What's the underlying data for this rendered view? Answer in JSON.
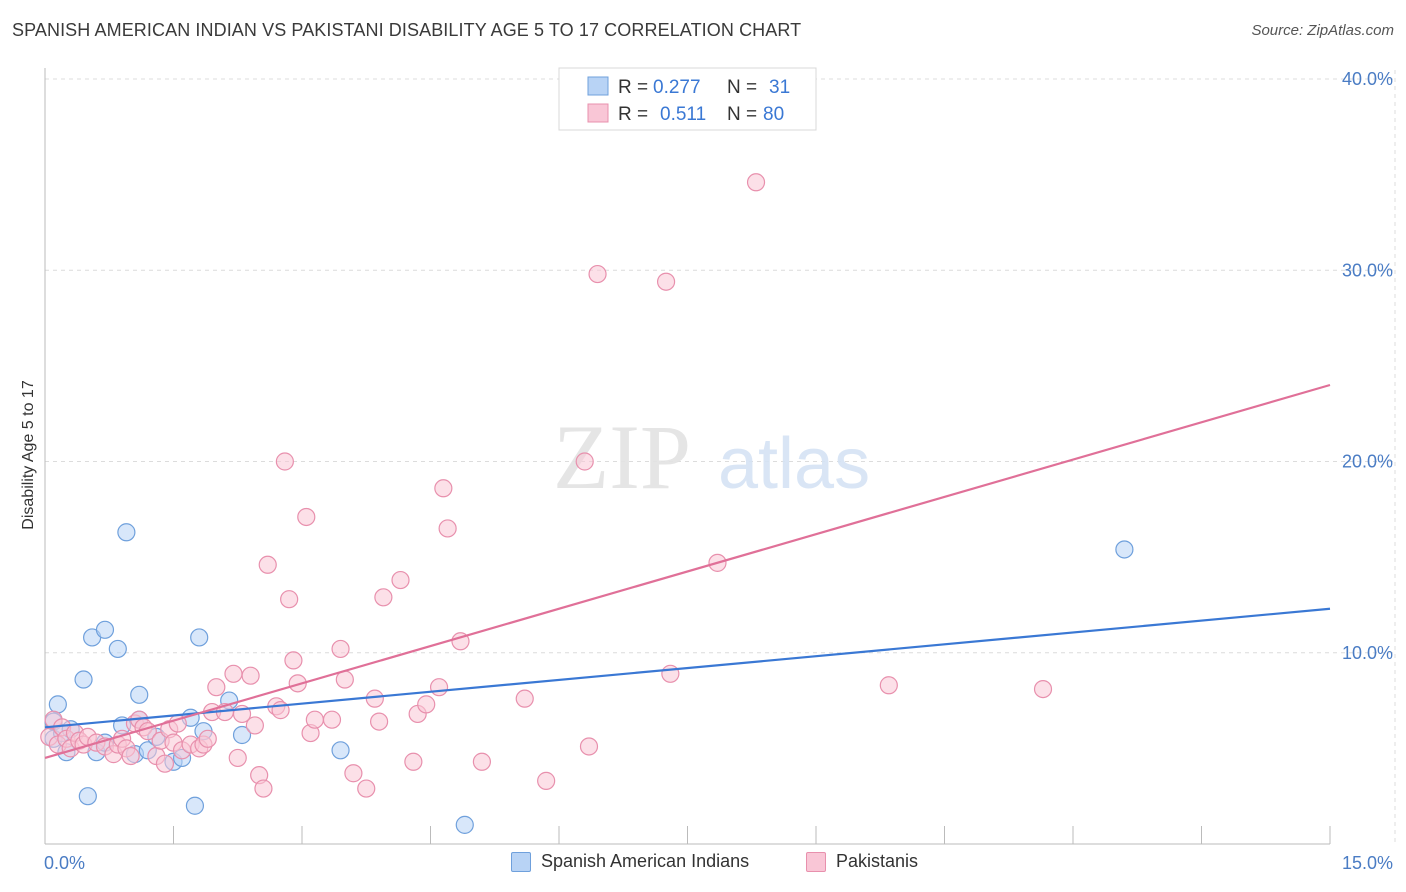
{
  "header": {
    "title": "SPANISH AMERICAN INDIAN VS PAKISTANI DISABILITY AGE 5 TO 17 CORRELATION CHART",
    "source": "Source: ZipAtlas.com"
  },
  "watermark": {
    "zip": "ZIP",
    "atlas": "atlas"
  },
  "colors": {
    "blue_fill": "#b8d3f5",
    "blue_stroke": "#6fa0dc",
    "blue_line": "#3a78d4",
    "pink_fill": "#f9c6d6",
    "pink_stroke": "#e890ad",
    "pink_line": "#e07098",
    "tick": "#4a7cc4",
    "grid": "#dcdcdc"
  },
  "legend": {
    "rows": [
      {
        "r_label": "R =",
        "r_value": "0.277",
        "n_label": "N =",
        "n_value": "31",
        "series": "blue"
      },
      {
        "r_label": "R =",
        "r_value": "0.511",
        "n_label": "N =",
        "n_value": "80",
        "series": "pink"
      }
    ]
  },
  "bottom_legend": [
    {
      "label": "Spanish American Indians",
      "series": "blue"
    },
    {
      "label": "Pakistanis",
      "series": "pink"
    }
  ],
  "chart_data": {
    "type": "scatter",
    "title": "SPANISH AMERICAN INDIAN VS PAKISTANI DISABILITY AGE 5 TO 17 CORRELATION CHART",
    "xlabel": "",
    "ylabel": "Disability Age 5 to 17",
    "xlim": [
      0,
      15
    ],
    "ylim": [
      0,
      40
    ],
    "x_tick_labels": [
      "0.0%",
      "15.0%"
    ],
    "y_ticks": [
      10,
      20,
      30,
      40
    ],
    "y_tick_labels": [
      "10.0%",
      "20.0%",
      "30.0%",
      "40.0%"
    ],
    "grid": true,
    "series": [
      {
        "name": "Spanish American Indians",
        "color": "blue",
        "trend": {
          "x": [
            0,
            15
          ],
          "y": [
            6.1,
            12.3
          ]
        },
        "points": [
          [
            0.1,
            6.4
          ],
          [
            0.1,
            5.5
          ],
          [
            0.15,
            7.3
          ],
          [
            0.2,
            5.8
          ],
          [
            0.25,
            4.8
          ],
          [
            0.3,
            6.0
          ],
          [
            0.45,
            8.6
          ],
          [
            0.5,
            2.5
          ],
          [
            0.55,
            10.8
          ],
          [
            0.6,
            4.8
          ],
          [
            0.7,
            11.2
          ],
          [
            0.7,
            5.3
          ],
          [
            0.85,
            10.2
          ],
          [
            0.9,
            6.2
          ],
          [
            0.95,
            16.3
          ],
          [
            1.05,
            4.7
          ],
          [
            1.1,
            6.5
          ],
          [
            1.1,
            7.8
          ],
          [
            1.2,
            4.9
          ],
          [
            1.3,
            5.6
          ],
          [
            1.5,
            4.3
          ],
          [
            1.6,
            4.5
          ],
          [
            1.7,
            6.6
          ],
          [
            1.75,
            2.0
          ],
          [
            1.8,
            10.8
          ],
          [
            1.85,
            5.9
          ],
          [
            2.15,
            7.5
          ],
          [
            2.3,
            5.7
          ],
          [
            3.45,
            4.9
          ],
          [
            4.9,
            1.0
          ],
          [
            12.6,
            15.4
          ]
        ]
      },
      {
        "name": "Pakistanis",
        "color": "pink",
        "trend": {
          "x": [
            0,
            15
          ],
          "y": [
            4.5,
            24.0
          ]
        },
        "points": [
          [
            0.05,
            5.6
          ],
          [
            0.1,
            6.5
          ],
          [
            0.15,
            5.2
          ],
          [
            0.2,
            6.1
          ],
          [
            0.25,
            5.5
          ],
          [
            0.3,
            5.0
          ],
          [
            0.35,
            5.8
          ],
          [
            0.4,
            5.4
          ],
          [
            0.45,
            5.2
          ],
          [
            0.5,
            5.6
          ],
          [
            0.6,
            5.3
          ],
          [
            0.7,
            5.1
          ],
          [
            0.8,
            4.7
          ],
          [
            0.85,
            5.2
          ],
          [
            0.9,
            5.5
          ],
          [
            0.95,
            5.0
          ],
          [
            1.0,
            4.6
          ],
          [
            1.05,
            6.3
          ],
          [
            1.1,
            6.5
          ],
          [
            1.15,
            6.1
          ],
          [
            1.2,
            5.9
          ],
          [
            1.3,
            4.6
          ],
          [
            1.35,
            5.4
          ],
          [
            1.4,
            4.2
          ],
          [
            1.45,
            6.0
          ],
          [
            1.5,
            5.3
          ],
          [
            1.55,
            6.3
          ],
          [
            1.6,
            4.9
          ],
          [
            1.7,
            5.2
          ],
          [
            1.8,
            5.0
          ],
          [
            1.85,
            5.2
          ],
          [
            1.9,
            5.5
          ],
          [
            1.95,
            6.9
          ],
          [
            2.0,
            8.2
          ],
          [
            2.1,
            6.9
          ],
          [
            2.2,
            8.9
          ],
          [
            2.25,
            4.5
          ],
          [
            2.3,
            6.8
          ],
          [
            2.4,
            8.8
          ],
          [
            2.45,
            6.2
          ],
          [
            2.5,
            3.6
          ],
          [
            2.55,
            2.9
          ],
          [
            2.6,
            14.6
          ],
          [
            2.7,
            7.2
          ],
          [
            2.75,
            7.0
          ],
          [
            2.8,
            20.0
          ],
          [
            2.85,
            12.8
          ],
          [
            2.9,
            9.6
          ],
          [
            2.95,
            8.4
          ],
          [
            3.05,
            17.1
          ],
          [
            3.1,
            5.8
          ],
          [
            3.15,
            6.5
          ],
          [
            3.35,
            6.5
          ],
          [
            3.45,
            10.2
          ],
          [
            3.5,
            8.6
          ],
          [
            3.6,
            3.7
          ],
          [
            3.75,
            2.9
          ],
          [
            3.85,
            7.6
          ],
          [
            3.9,
            6.4
          ],
          [
            3.95,
            12.9
          ],
          [
            4.15,
            13.8
          ],
          [
            4.3,
            4.3
          ],
          [
            4.35,
            6.8
          ],
          [
            4.45,
            7.3
          ],
          [
            4.6,
            8.2
          ],
          [
            4.65,
            18.6
          ],
          [
            4.7,
            16.5
          ],
          [
            4.85,
            10.6
          ],
          [
            5.1,
            4.3
          ],
          [
            5.6,
            7.6
          ],
          [
            5.85,
            3.3
          ],
          [
            6.3,
            20.0
          ],
          [
            6.35,
            5.1
          ],
          [
            6.45,
            29.8
          ],
          [
            7.25,
            29.4
          ],
          [
            7.3,
            8.9
          ],
          [
            7.85,
            14.7
          ],
          [
            8.3,
            34.6
          ],
          [
            9.85,
            8.3
          ],
          [
            11.65,
            8.1
          ]
        ]
      }
    ]
  }
}
